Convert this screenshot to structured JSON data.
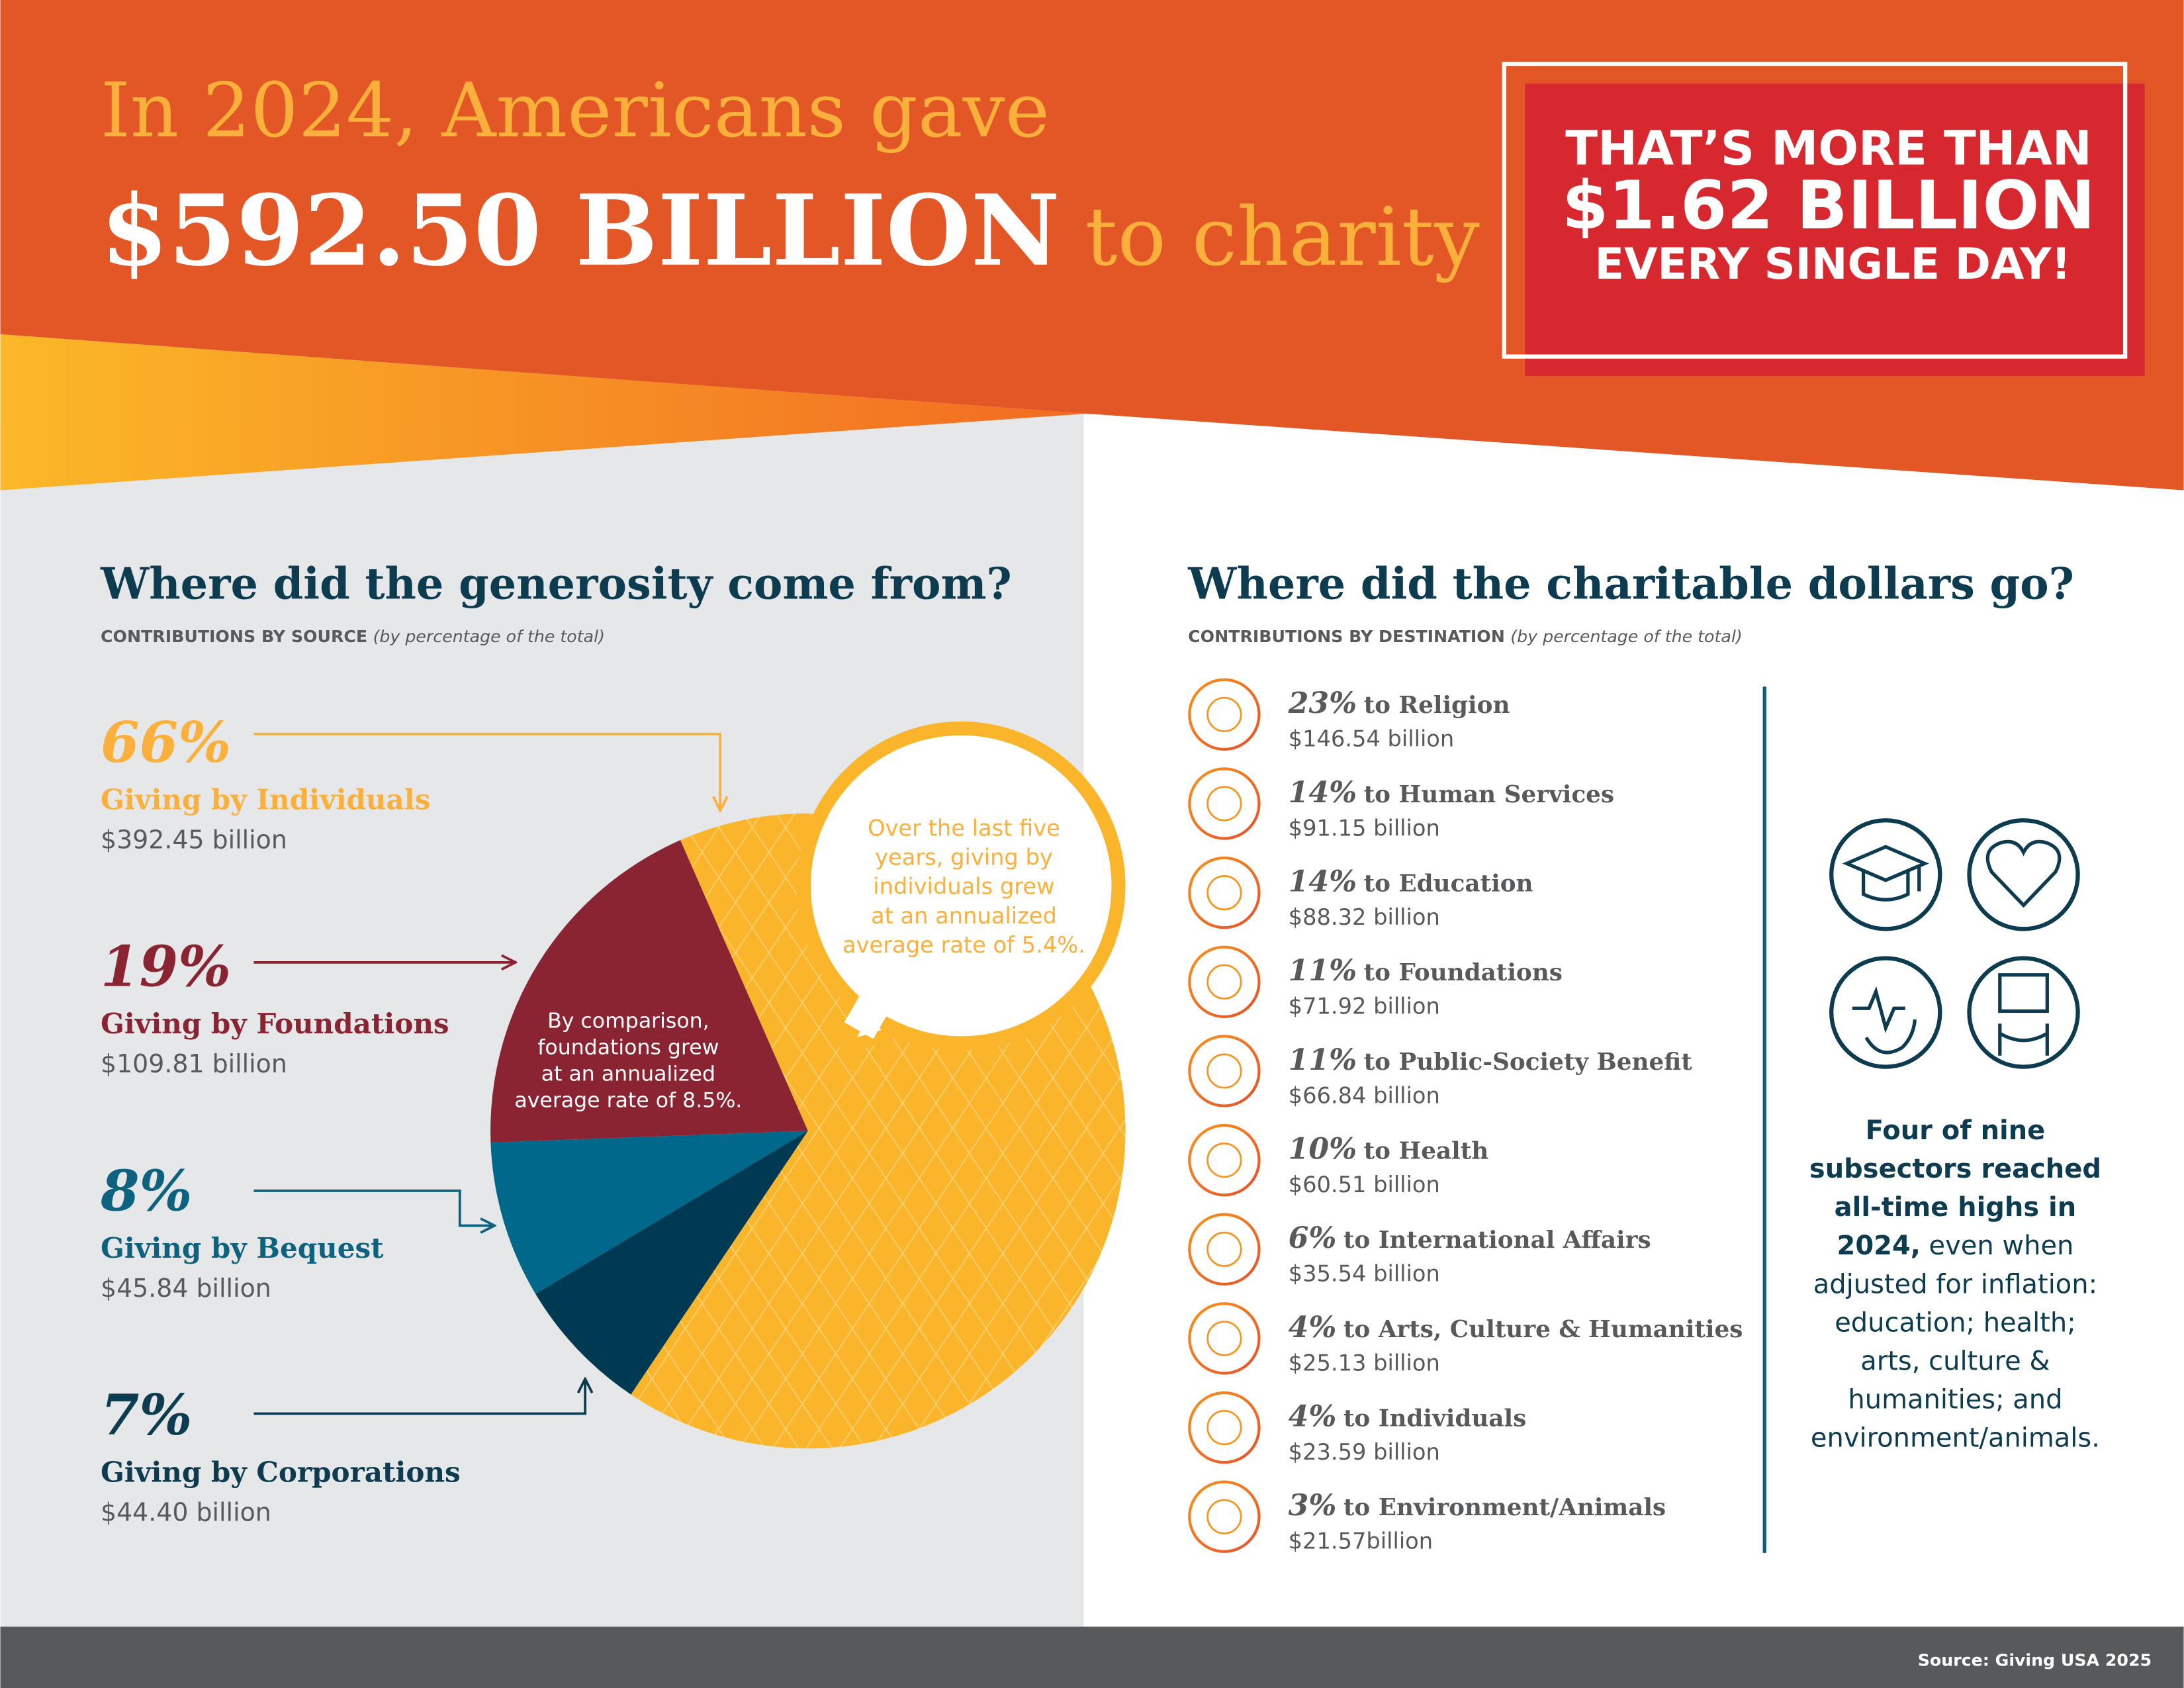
{
  "header": {
    "line1": "In 2024, Americans gave",
    "amount": "$592.50 BILLION",
    "suffix": "to charity"
  },
  "callout": {
    "line1": "THAT’S MORE THAN",
    "amount": "$1.62 BILLION",
    "line3": "EVERY SINGLE DAY!"
  },
  "chart_data": {
    "type": "pie",
    "title": "Where did the generosity come from?",
    "subtitle": "CONTRIBUTIONS BY SOURCE",
    "subtitle_note": "(by percentage of the total)",
    "categories": [
      "Giving by Individuals",
      "Giving by Foundations",
      "Giving by Bequest",
      "Giving by Corporations"
    ],
    "values": [
      66,
      19,
      8,
      7
    ],
    "value_labels": [
      "66%",
      "19%",
      "8%",
      "7%"
    ],
    "amounts": [
      "$392.45 billion",
      "$109.81 billion",
      "$45.84 billion",
      "$44.40 billion"
    ],
    "colors": [
      "#fbb52b",
      "#8a2433",
      "#00688a",
      "#003a52"
    ],
    "annotations": [
      [
        "Over the last five",
        "years, giving by",
        "individuals grew",
        "at an annualized",
        "average rate of 5.4%."
      ],
      [
        "By comparison,",
        "foundations grew",
        "at an annualized",
        "average rate of 8.5%."
      ]
    ]
  },
  "destinations": {
    "title": "Where did the charitable dollars go?",
    "subtitle": "CONTRIBUTIONS BY DESTINATION",
    "subtitle_note": "(by percentage of the total)",
    "items": [
      {
        "percent": "23%",
        "label": "to Religion",
        "amount": "$146.54 billion"
      },
      {
        "percent": "14%",
        "label": "to Human Services",
        "amount": "$91.15 billion"
      },
      {
        "percent": "14%",
        "label": "to Education",
        "amount": "$88.32 billion"
      },
      {
        "percent": "11%",
        "label": "to Foundations",
        "amount": "$71.92 billion"
      },
      {
        "percent": "11%",
        "label": "to Public-Society Benefit",
        "amount": "$66.84 billion"
      },
      {
        "percent": "10%",
        "label": "to Health",
        "amount": "$60.51 billion"
      },
      {
        "percent": "6%",
        "label": "to International Affairs",
        "amount": "$35.54 billion"
      },
      {
        "percent": "4%",
        "label": "to Arts, Culture & Humanities",
        "amount": "$25.13 billion"
      },
      {
        "percent": "4%",
        "label": "to Individuals",
        "amount": "$23.59 billion"
      },
      {
        "percent": "3%",
        "label": "to Environment/Animals",
        "amount": "$21.57billion"
      }
    ]
  },
  "note": {
    "lines": [
      {
        "bold": "Four of nine"
      },
      {
        "bold": "subsectors reached"
      },
      {
        "bold": "all-time highs in"
      },
      {
        "bold": "2024,",
        "text": "even when"
      },
      {
        "text": "adjusted for inflation:"
      },
      {
        "text": "education; health;"
      },
      {
        "text": "arts, culture &"
      },
      {
        "text": "humanities; and"
      },
      {
        "text": "environment/animals."
      }
    ]
  },
  "source": "Source: Giving USA 2025"
}
